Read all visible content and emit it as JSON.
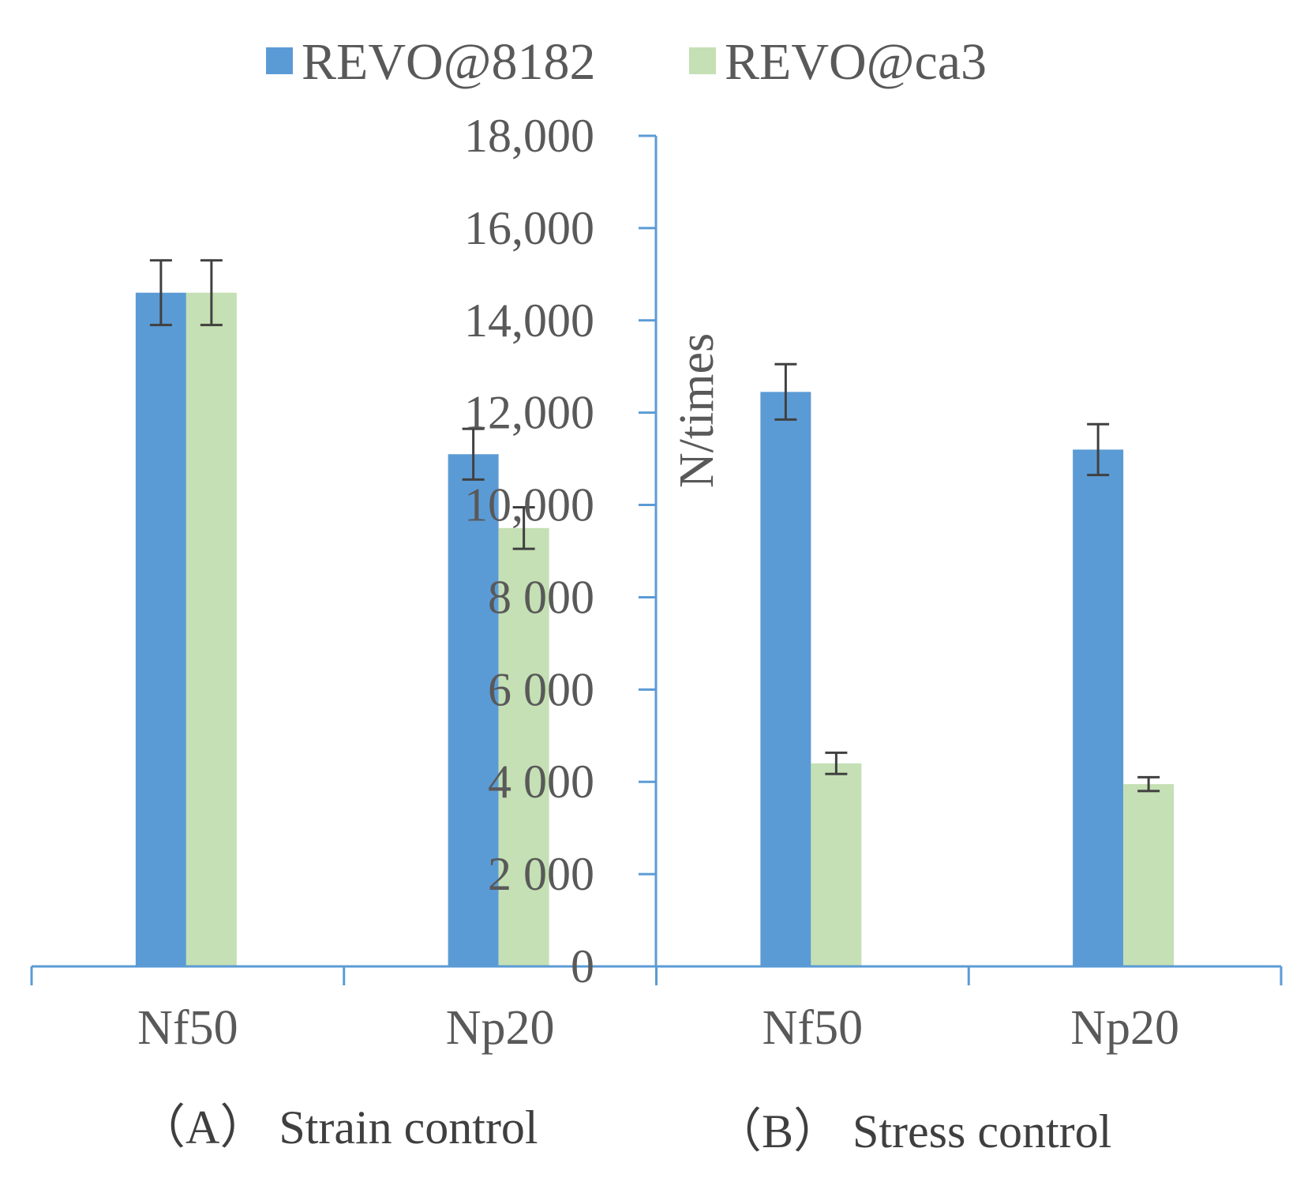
{
  "chart_data": {
    "type": "bar",
    "y_axis": {
      "title": "N/times",
      "min": 0,
      "max": 18000,
      "step": 2000,
      "tick_labels": [
        "0",
        "2 000",
        "4 000",
        "6 000",
        "8 000",
        "10,000",
        "12,000",
        "14,000",
        "16,000",
        "18,000"
      ]
    },
    "legend": {
      "position": "top-center",
      "entries": [
        {
          "name": "REVO@8182",
          "color": "#5b9bd5"
        },
        {
          "name": "REVO@ca3",
          "color": "#c5e0b4"
        }
      ]
    },
    "categories": [
      "Nf50",
      "Np20",
      "Nf50",
      "Np20"
    ],
    "panels": [
      {
        "caption": "（A） Strain control",
        "categories": [
          "Nf50",
          "Np20"
        ]
      },
      {
        "caption": "（B） Stress control",
        "categories": [
          "Nf50",
          "Np20"
        ]
      }
    ],
    "series": [
      {
        "name": "REVO@8182",
        "color": "#5b9bd5",
        "values": [
          14600,
          11100,
          12450,
          11200
        ],
        "errors": [
          700,
          550,
          600,
          550
        ]
      },
      {
        "name": "REVO@ca3",
        "color": "#c5e0b4",
        "values": [
          14600,
          9500,
          4400,
          3950
        ],
        "errors": [
          700,
          450,
          230,
          150
        ]
      }
    ]
  }
}
